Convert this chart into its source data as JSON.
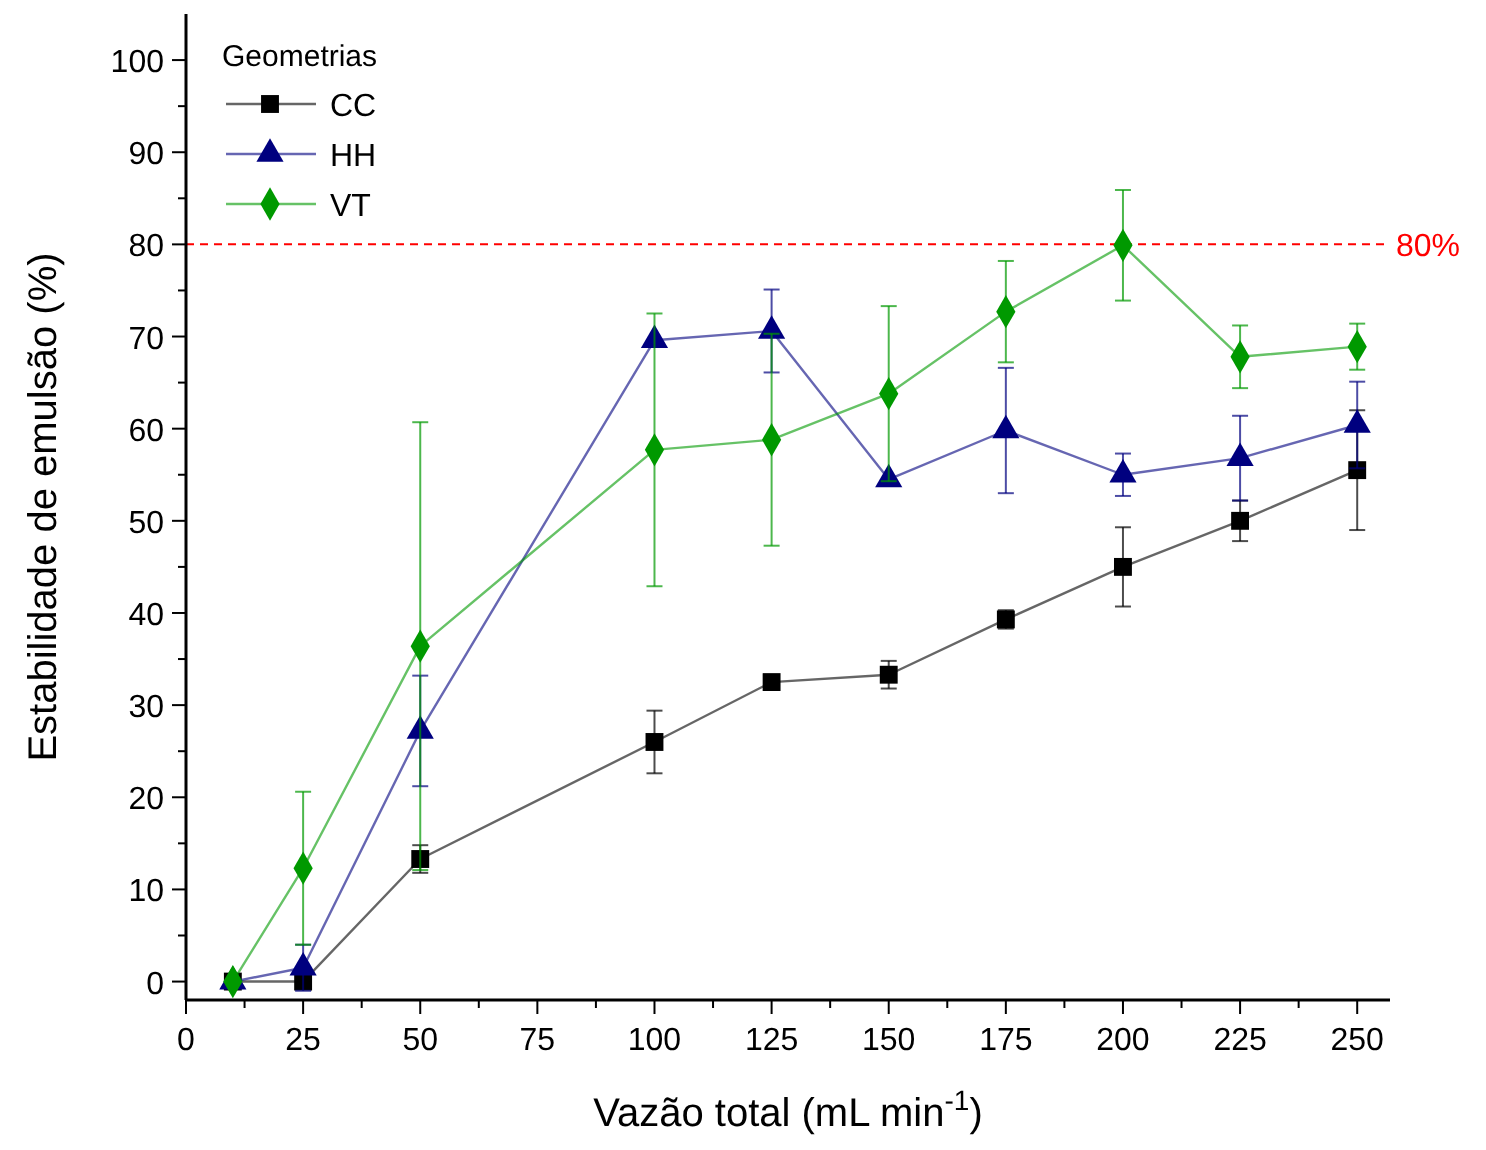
{
  "chart_data": {
    "type": "line",
    "xlabel": "Vazão total (mL min$^{-1}$)",
    "ylabel": "Estabilidade de emulsão (%)",
    "legend_title": "Geometrias",
    "legend": "top left",
    "xlim": [
      0,
      257
    ],
    "ylim": [
      -2,
      105
    ],
    "xticks": [
      0,
      {
        "value": 12.5,
        "label": null
      },
      25,
      {
        "value": 37.5,
        "label": null
      },
      50,
      {
        "value": 62.5,
        "label": null
      },
      75,
      {
        "value": 87.5,
        "label": null
      },
      100,
      {
        "value": 112.5,
        "label": null
      },
      125,
      {
        "value": 137.5,
        "label": null
      },
      150,
      {
        "value": 162.5,
        "label": null
      },
      175,
      {
        "value": 187.5,
        "label": null
      },
      200,
      {
        "value": 212.5,
        "label": null
      },
      225,
      {
        "value": 237.5,
        "label": null
      },
      250
    ],
    "yticks": [
      0,
      {
        "value": 5,
        "label": null
      },
      10,
      {
        "value": 15,
        "label": null
      },
      20,
      {
        "value": 25,
        "label": null
      },
      30,
      {
        "value": 35,
        "label": null
      },
      40,
      {
        "value": 45,
        "label": null
      },
      50,
      {
        "value": 55,
        "label": null
      },
      60,
      {
        "value": 65,
        "label": null
      },
      70,
      {
        "value": 75,
        "label": null
      },
      80,
      {
        "value": 85,
        "label": null
      },
      90,
      {
        "value": 95,
        "label": null
      },
      100
    ],
    "x": [
      10,
      25,
      50,
      100,
      125,
      150,
      175,
      200,
      225,
      250
    ],
    "series": [
      {
        "name": "CC",
        "color": "#000000",
        "marker": "square",
        "values": [
          0,
          0,
          13.3,
          26,
          32.5,
          33.3,
          39.3,
          45,
          50,
          55.5
        ],
        "errors": [
          null,
          0.5,
          1.5,
          3.4,
          null,
          1.5,
          1,
          4.3,
          2.2,
          6.5
        ]
      },
      {
        "name": "HH",
        "color": "#00007f",
        "marker": "triangle",
        "values": [
          0,
          1.5,
          27.2,
          69.6,
          70.6,
          54.5,
          59.8,
          55,
          56.8,
          60.4
        ],
        "errors": [
          null,
          2.5,
          6,
          null,
          4.5,
          null,
          6.8,
          2.3,
          4.6,
          4.7
        ]
      },
      {
        "name": "VT",
        "color": "#009900",
        "marker": "diamond",
        "values": [
          0,
          12.3,
          36.4,
          57.7,
          58.8,
          63.8,
          72.7,
          79.9,
          67.8,
          68.9
        ],
        "errors": [
          null,
          8.3,
          24.3,
          14.8,
          11.5,
          9.5,
          5.5,
          6,
          3.4,
          2.5
        ]
      }
    ],
    "ref_lines": [
      {
        "axis": "y",
        "value": 80,
        "label": "80%",
        "color": "#ff0000",
        "line_style": "dashed"
      }
    ],
    "grid": false
  }
}
